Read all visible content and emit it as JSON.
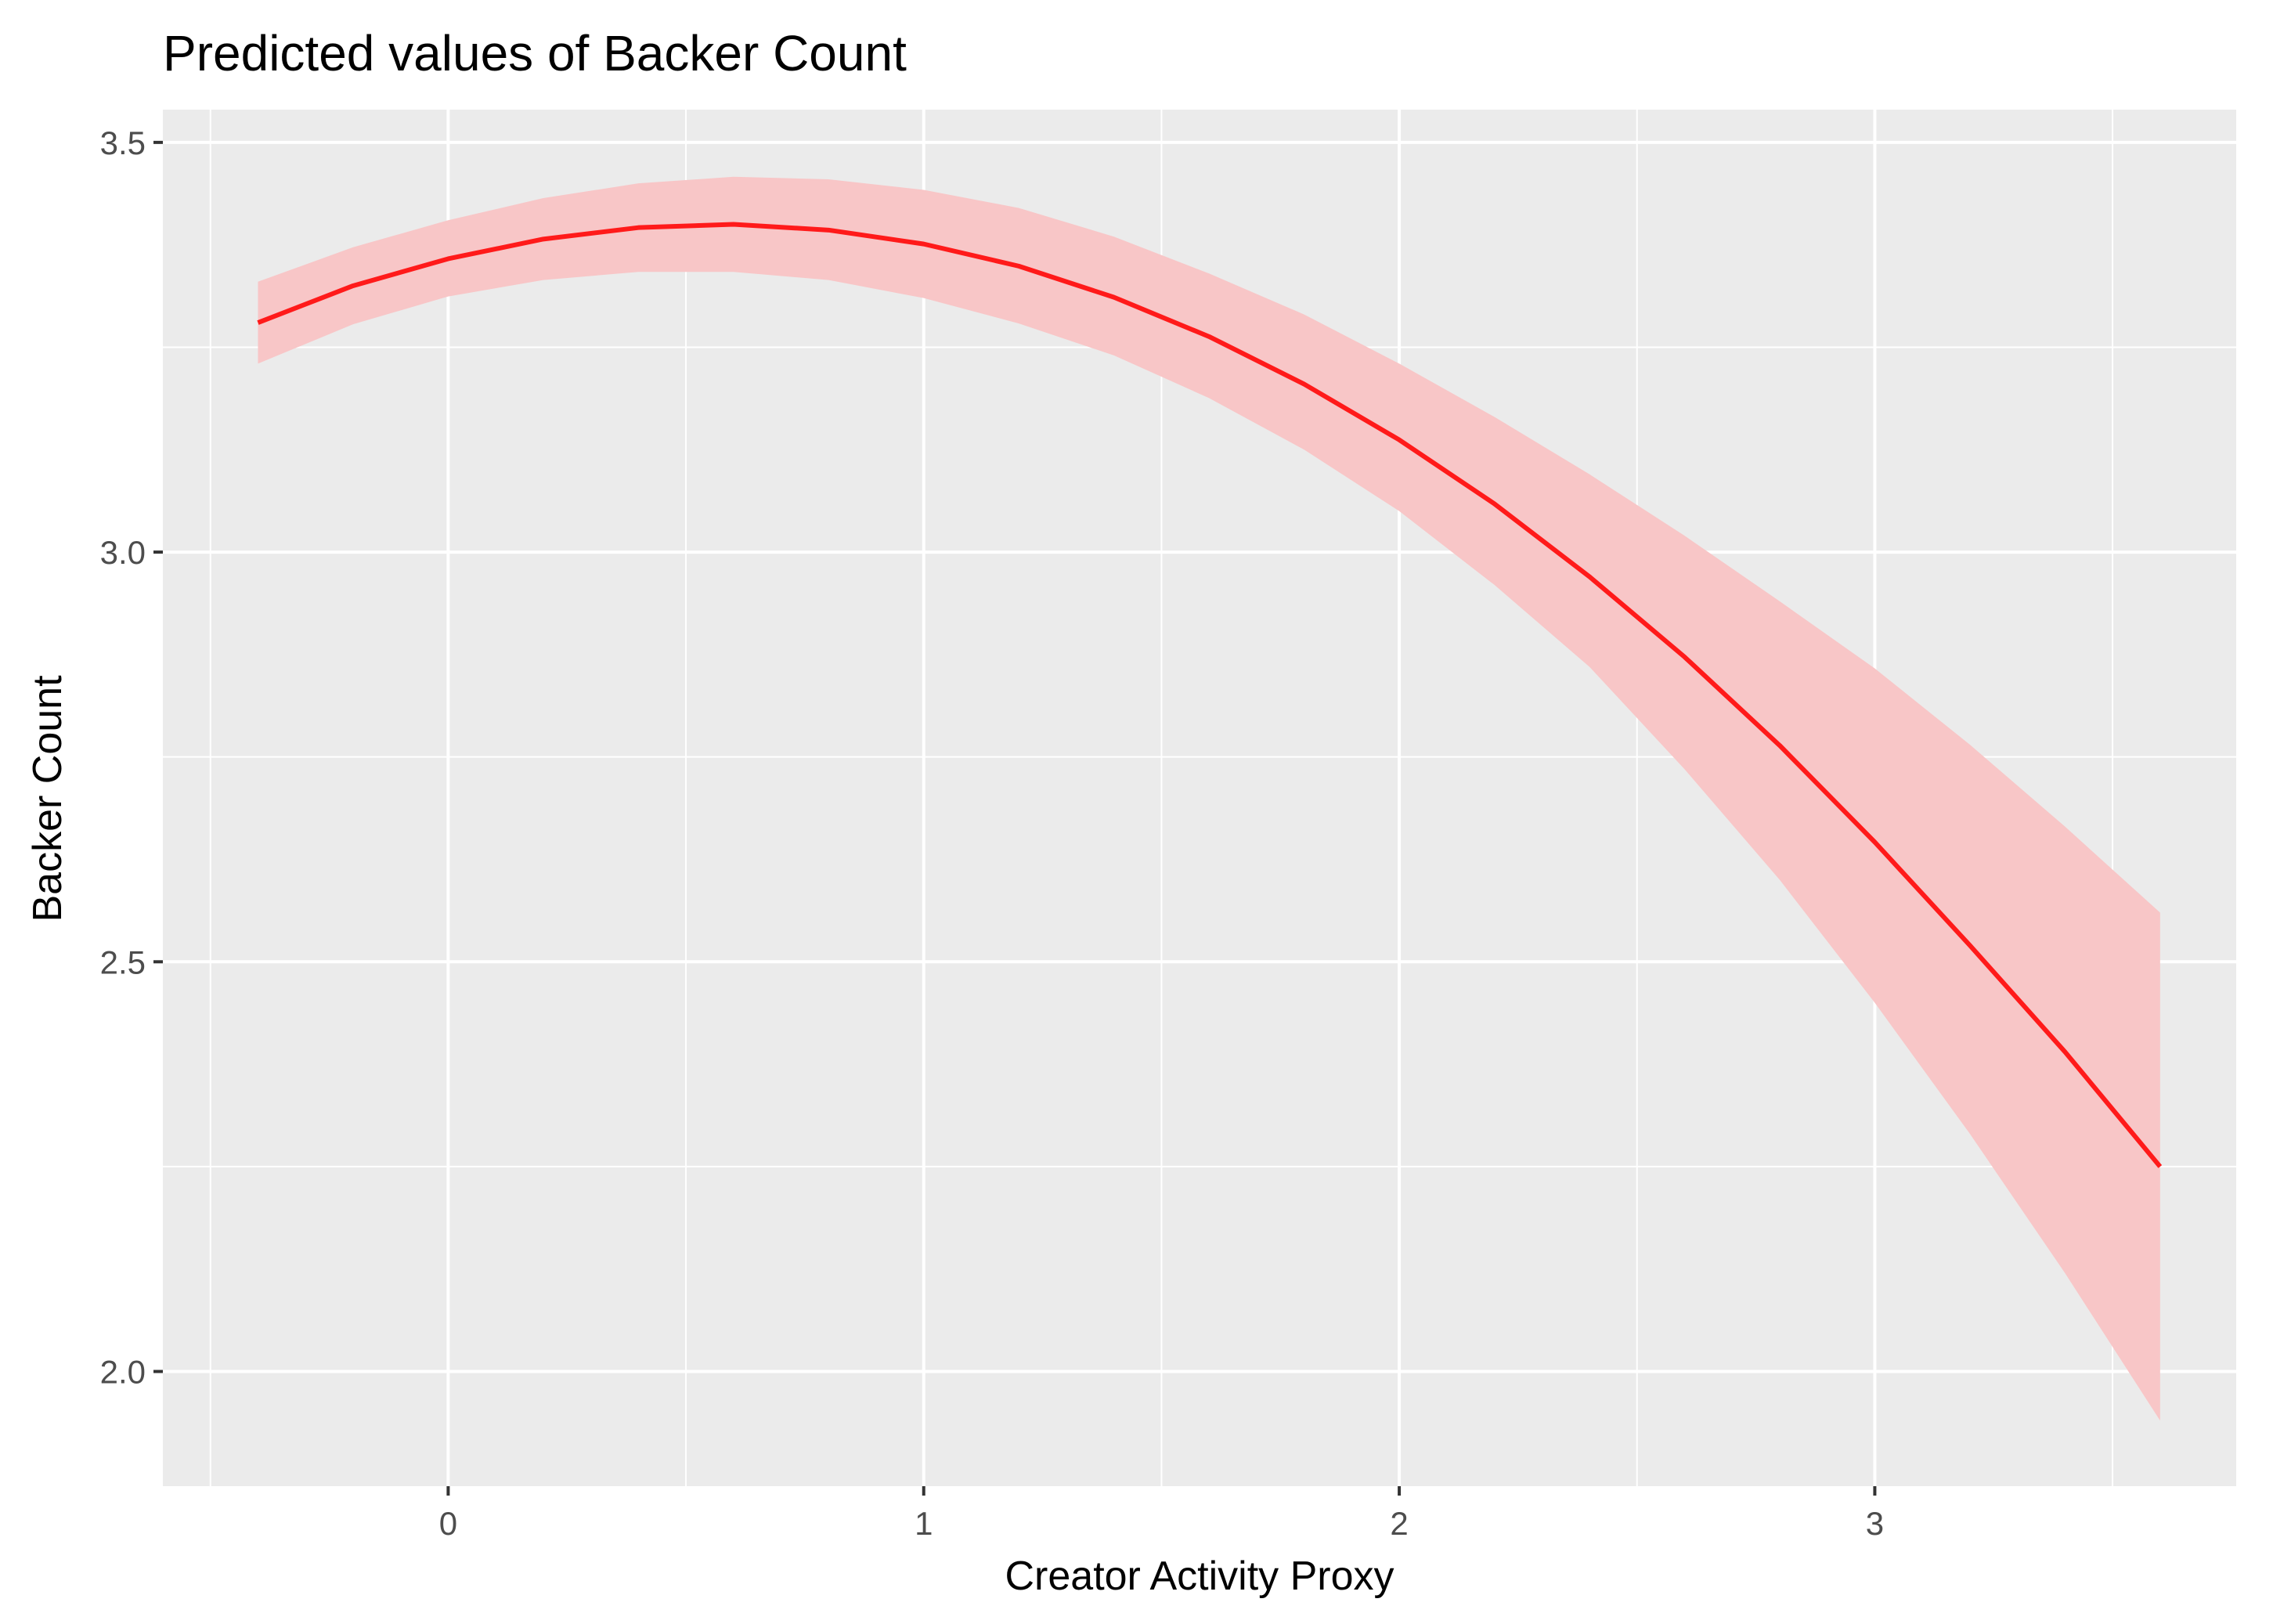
{
  "chart_data": {
    "type": "line",
    "title": "Predicted values of Backer Count",
    "xlabel": "Creator Activity Proxy",
    "ylabel": "Backer Count",
    "xlim": [
      -0.6,
      3.76
    ],
    "ylim": [
      1.86,
      3.54
    ],
    "x_ticks": [
      0,
      1,
      2,
      3
    ],
    "x_tick_labels": [
      "0",
      "1",
      "2",
      "3"
    ],
    "y_ticks": [
      2.0,
      2.5,
      3.0,
      3.5
    ],
    "y_tick_labels": [
      "2.0",
      "2.5",
      "3.0",
      "3.5"
    ],
    "grid": true,
    "legend": "none",
    "series": [
      {
        "line_color": "#ff1a1a",
        "band_color": "#f8c6c7",
        "x": [
          -0.4,
          -0.2,
          0.0,
          0.2,
          0.4,
          0.6,
          0.8,
          1.0,
          1.2,
          1.4,
          1.6,
          1.8,
          2.0,
          2.2,
          2.4,
          2.6,
          2.8,
          3.0,
          3.2,
          3.4,
          3.6
        ],
        "y": [
          3.28,
          3.325,
          3.358,
          3.382,
          3.396,
          3.4,
          3.393,
          3.376,
          3.349,
          3.311,
          3.263,
          3.205,
          3.137,
          3.059,
          2.97,
          2.872,
          2.764,
          2.646,
          2.52,
          2.39,
          2.25
        ],
        "ci_low": [
          3.23,
          3.278,
          3.312,
          3.332,
          3.342,
          3.342,
          3.332,
          3.31,
          3.279,
          3.24,
          3.188,
          3.125,
          3.05,
          2.96,
          2.86,
          2.735,
          2.6,
          2.45,
          2.29,
          2.12,
          1.94
        ],
        "ci_high": [
          3.33,
          3.372,
          3.405,
          3.432,
          3.45,
          3.458,
          3.455,
          3.442,
          3.42,
          3.385,
          3.34,
          3.29,
          3.23,
          3.165,
          3.095,
          3.02,
          2.94,
          2.858,
          2.765,
          2.665,
          2.56
        ]
      }
    ]
  }
}
